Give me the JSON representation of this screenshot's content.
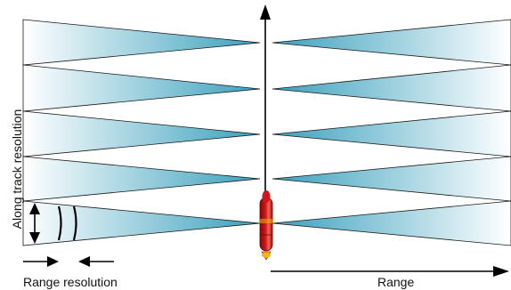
{
  "labels": {
    "along_track_resolution": "Along track resolution",
    "range_resolution": "Range resolution",
    "range": "Range"
  },
  "colors": {
    "beam_edge": "#3aa0bd",
    "beam_fade": "#ffffff",
    "beam_outline": "#1a1a1a",
    "vehicle_body": "#d0161b",
    "vehicle_highlight": "#f06a50",
    "vehicle_accent": "#f4b400",
    "arrow": "#000000"
  },
  "icons": {
    "vehicle": "submarine-vehicle-icon",
    "wavefront": "wavefront-arcs-icon"
  }
}
